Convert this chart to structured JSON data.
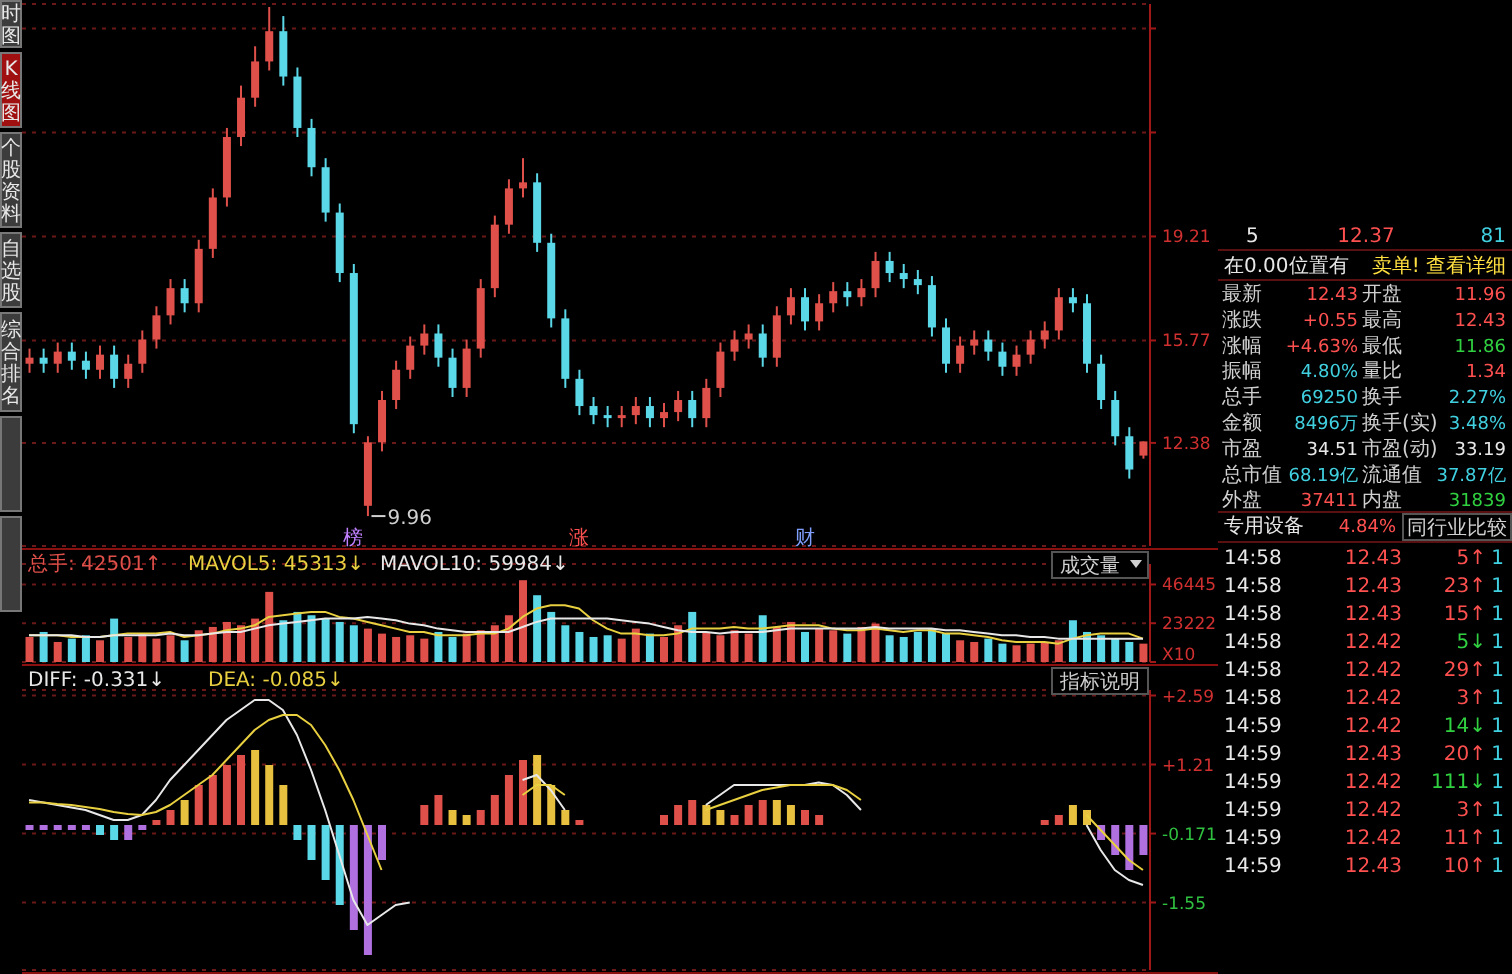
{
  "chart_data": [
    {
      "type": "candlestick",
      "tick_labels": "y",
      "grid": "y",
      "categories": [
        null,
        null,
        null,
        null,
        null,
        null,
        null,
        null,
        null,
        null,
        null,
        null,
        null,
        null,
        null,
        null,
        null,
        null,
        null,
        null,
        null,
        null,
        null,
        null,
        null,
        null,
        null,
        null,
        null,
        null,
        null,
        null,
        null,
        null,
        null,
        null,
        null,
        null,
        null,
        null,
        null,
        null,
        null,
        null,
        null,
        null,
        null,
        null,
        null,
        null,
        null,
        null,
        null,
        null,
        null,
        null,
        null,
        null,
        null,
        null,
        null,
        null,
        null,
        null,
        null,
        null,
        null,
        null,
        null,
        null,
        null,
        null,
        null,
        null,
        null,
        null,
        null,
        null,
        null,
        null
      ],
      "ohlc": [
        [
          15.0,
          15.5,
          14.7,
          15.2
        ],
        [
          15.2,
          15.5,
          14.7,
          15.0
        ],
        [
          15.0,
          15.7,
          14.7,
          15.4
        ],
        [
          15.4,
          15.7,
          14.8,
          15.1
        ],
        [
          15.1,
          15.4,
          14.5,
          14.8
        ],
        [
          14.8,
          15.6,
          14.5,
          15.3
        ],
        [
          15.3,
          15.6,
          14.2,
          14.5
        ],
        [
          14.5,
          15.3,
          14.2,
          15.0
        ],
        [
          15.0,
          16.1,
          14.7,
          15.8
        ],
        [
          15.8,
          16.9,
          15.5,
          16.6
        ],
        [
          16.6,
          17.8,
          16.3,
          17.5
        ],
        [
          17.5,
          17.8,
          16.7,
          17.0
        ],
        [
          17.0,
          19.1,
          16.7,
          18.8
        ],
        [
          18.8,
          20.8,
          18.5,
          20.5
        ],
        [
          20.5,
          22.8,
          20.2,
          22.5
        ],
        [
          22.5,
          24.2,
          22.2,
          23.8
        ],
        [
          23.8,
          25.5,
          23.5,
          25.0
        ],
        [
          25.0,
          26.8,
          24.7,
          26.0
        ],
        [
          26.0,
          26.5,
          24.2,
          24.5
        ],
        [
          24.5,
          24.8,
          22.5,
          22.8
        ],
        [
          22.8,
          23.1,
          21.2,
          21.5
        ],
        [
          21.5,
          21.8,
          19.7,
          20.0
        ],
        [
          20.0,
          20.3,
          17.7,
          18.0
        ],
        [
          18.0,
          18.3,
          12.7,
          13.0
        ],
        [
          10.3,
          12.6,
          9.96,
          12.4
        ],
        [
          12.4,
          14.1,
          12.1,
          13.8
        ],
        [
          13.8,
          15.1,
          13.5,
          14.8
        ],
        [
          14.8,
          15.9,
          14.5,
          15.6
        ],
        [
          15.6,
          16.3,
          15.3,
          16.0
        ],
        [
          16.0,
          16.3,
          14.9,
          15.2
        ],
        [
          15.2,
          15.5,
          13.9,
          14.2
        ],
        [
          14.2,
          15.8,
          13.9,
          15.5
        ],
        [
          15.5,
          17.8,
          15.2,
          17.5
        ],
        [
          17.5,
          19.9,
          17.2,
          19.6
        ],
        [
          19.6,
          21.1,
          19.3,
          20.8
        ],
        [
          20.8,
          21.8,
          20.5,
          21.0
        ],
        [
          21.0,
          21.3,
          18.7,
          19.0
        ],
        [
          19.0,
          19.3,
          16.2,
          16.5
        ],
        [
          16.5,
          16.8,
          14.2,
          14.5
        ],
        [
          14.5,
          14.8,
          13.3,
          13.6
        ],
        [
          13.6,
          13.9,
          13.0,
          13.3
        ],
        [
          13.3,
          13.6,
          12.9,
          13.2
        ],
        [
          13.2,
          13.6,
          12.9,
          13.3
        ],
        [
          13.3,
          13.9,
          13.0,
          13.6
        ],
        [
          13.6,
          13.9,
          12.9,
          13.2
        ],
        [
          13.2,
          13.7,
          12.9,
          13.4
        ],
        [
          13.4,
          14.1,
          13.1,
          13.8
        ],
        [
          13.8,
          14.1,
          12.9,
          13.2
        ],
        [
          13.2,
          14.5,
          12.9,
          14.2
        ],
        [
          14.2,
          15.7,
          13.9,
          15.4
        ],
        [
          15.4,
          16.1,
          15.1,
          15.8
        ],
        [
          15.8,
          16.3,
          15.5,
          16.0
        ],
        [
          16.0,
          16.3,
          14.9,
          15.2
        ],
        [
          15.2,
          16.9,
          14.9,
          16.6
        ],
        [
          16.6,
          17.5,
          16.3,
          17.2
        ],
        [
          17.2,
          17.5,
          16.1,
          16.4
        ],
        [
          16.4,
          17.3,
          16.1,
          17.0
        ],
        [
          17.0,
          17.7,
          16.7,
          17.4
        ],
        [
          17.4,
          17.7,
          16.9,
          17.2
        ],
        [
          17.2,
          17.8,
          16.9,
          17.5
        ],
        [
          17.5,
          18.7,
          17.2,
          18.4
        ],
        [
          18.4,
          18.7,
          17.7,
          18.0
        ],
        [
          18.0,
          18.3,
          17.5,
          17.8
        ],
        [
          17.8,
          18.1,
          17.3,
          17.6
        ],
        [
          17.6,
          17.9,
          15.9,
          16.2
        ],
        [
          16.2,
          16.5,
          14.7,
          15.0
        ],
        [
          15.0,
          15.9,
          14.7,
          15.6
        ],
        [
          15.6,
          16.1,
          15.3,
          15.8
        ],
        [
          15.8,
          16.1,
          15.1,
          15.4
        ],
        [
          15.4,
          15.7,
          14.6,
          14.9
        ],
        [
          14.9,
          15.6,
          14.6,
          15.3
        ],
        [
          15.3,
          16.1,
          15.0,
          15.8
        ],
        [
          15.8,
          16.4,
          15.5,
          16.1
        ],
        [
          16.1,
          17.5,
          15.8,
          17.2
        ],
        [
          17.2,
          17.5,
          16.7,
          17.0
        ],
        [
          17.0,
          17.3,
          14.7,
          15.0
        ],
        [
          15.0,
          15.3,
          13.5,
          13.8
        ],
        [
          13.8,
          14.1,
          12.3,
          12.6
        ],
        [
          12.6,
          12.9,
          11.2,
          11.5
        ],
        [
          11.96,
          12.43,
          11.86,
          12.43
        ]
      ],
      "colors": [
        "#e0504a",
        "#5ad8e8",
        "#e0504a",
        "#5ad8e8",
        "#5ad8e8",
        "#e0504a",
        "#5ad8e8",
        "#e0504a",
        "#e0504a",
        "#e0504a",
        "#e0504a",
        "#5ad8e8",
        "#e0504a",
        "#e0504a",
        "#e0504a",
        "#e0504a",
        "#e0504a",
        "#e0504a",
        "#5ad8e8",
        "#5ad8e8",
        "#5ad8e8",
        "#5ad8e8",
        "#5ad8e8",
        "#5ad8e8",
        "#e0504a",
        "#e0504a",
        "#e0504a",
        "#e0504a",
        "#e0504a",
        "#5ad8e8",
        "#5ad8e8",
        "#e0504a",
        "#e0504a",
        "#e0504a",
        "#e0504a",
        "#e0504a",
        "#5ad8e8",
        "#5ad8e8",
        "#5ad8e8",
        "#5ad8e8",
        "#5ad8e8",
        "#5ad8e8",
        "#e0504a",
        "#e0504a",
        "#5ad8e8",
        "#e0504a",
        "#e0504a",
        "#5ad8e8",
        "#e0504a",
        "#e0504a",
        "#e0504a",
        "#e0504a",
        "#5ad8e8",
        "#e0504a",
        "#e0504a",
        "#5ad8e8",
        "#e0504a",
        "#e0504a",
        "#5ad8e8",
        "#e0504a",
        "#e0504a",
        "#5ad8e8",
        "#5ad8e8",
        "#5ad8e8",
        "#5ad8e8",
        "#5ad8e8",
        "#e0504a",
        "#e0504a",
        "#5ad8e8",
        "#5ad8e8",
        "#e0504a",
        "#e0504a",
        "#e0504a",
        "#e0504a",
        "#5ad8e8",
        "#5ad8e8",
        "#5ad8e8",
        "#5ad8e8",
        "#5ad8e8",
        "#e0504a"
      ],
      "ylim": [
        8.97,
        26.9
      ],
      "yticks": [
        {
          "value": 12.38,
          "label": "12.38"
        },
        {
          "value": 15.77,
          "label": "15.77"
        },
        {
          "value": 19.21,
          "label": "19.21"
        },
        {
          "value": 22.65,
          "label": null
        },
        {
          "value": 26.09,
          "label": null
        }
      ],
      "annotations": [
        "9.96",
        "榜",
        "涨",
        "财"
      ]
    },
    {
      "type": "bar",
      "tick_labels": "y",
      "grid": "y",
      "legend": "top left",
      "categories": [
        null,
        null,
        null,
        null,
        null,
        null,
        null,
        null,
        null,
        null,
        null,
        null,
        null,
        null,
        null,
        null,
        null,
        null,
        null,
        null,
        null,
        null,
        null,
        null,
        null,
        null,
        null,
        null,
        null,
        null,
        null,
        null,
        null,
        null,
        null,
        null,
        null,
        null,
        null,
        null,
        null,
        null,
        null,
        null,
        null,
        null,
        null,
        null,
        null,
        null,
        null,
        null,
        null,
        null,
        null,
        null,
        null,
        null,
        null,
        null,
        null,
        null,
        null,
        null,
        null,
        null,
        null,
        null,
        null,
        null,
        null,
        null,
        null,
        null,
        null,
        null,
        null,
        null,
        null,
        null
      ],
      "ylim": [
        0,
        58700
      ],
      "yticks": [
        {
          "value": 0,
          "label": "X10"
        },
        23222,
        46445
      ],
      "series": [
        {
          "type": "bar",
          "name": "总手: 42501↑",
          "color": "#e0504a",
          "values": [
            15000,
            18000,
            12000,
            14000,
            16000,
            13000,
            26000,
            15000,
            17000,
            14000,
            16000,
            13000,
            19000,
            21000,
            24000,
            22000,
            26000,
            42000,
            25000,
            30000,
            28000,
            26000,
            24000,
            22000,
            20000,
            17000,
            15000,
            16000,
            14000,
            18000,
            15000,
            17000,
            19000,
            22000,
            28000,
            49000,
            40000,
            30000,
            22000,
            18000,
            15000,
            16000,
            14000,
            20000,
            17000,
            15000,
            22000,
            30000,
            18000,
            16000,
            19000,
            17000,
            28000,
            21000,
            24000,
            18000,
            20000,
            19000,
            17000,
            21000,
            23000,
            16000,
            15000,
            18000,
            20000,
            17000,
            13000,
            12000,
            14000,
            11000,
            10000,
            11000,
            12000,
            13000,
            25000,
            18000,
            16000,
            14000,
            12000,
            11000
          ],
          "colors": [
            "#e0504a",
            "#5ad8e8",
            "#e0504a",
            "#5ad8e8",
            "#5ad8e8",
            "#e0504a",
            "#5ad8e8",
            "#e0504a",
            "#e0504a",
            "#e0504a",
            "#e0504a",
            "#5ad8e8",
            "#e0504a",
            "#e0504a",
            "#e0504a",
            "#e0504a",
            "#e0504a",
            "#e0504a",
            "#5ad8e8",
            "#5ad8e8",
            "#5ad8e8",
            "#5ad8e8",
            "#5ad8e8",
            "#5ad8e8",
            "#e0504a",
            "#e0504a",
            "#e0504a",
            "#e0504a",
            "#e0504a",
            "#5ad8e8",
            "#5ad8e8",
            "#e0504a",
            "#e0504a",
            "#e0504a",
            "#e0504a",
            "#e0504a",
            "#5ad8e8",
            "#5ad8e8",
            "#5ad8e8",
            "#5ad8e8",
            "#5ad8e8",
            "#5ad8e8",
            "#e0504a",
            "#e0504a",
            "#5ad8e8",
            "#e0504a",
            "#e0504a",
            "#5ad8e8",
            "#e0504a",
            "#e0504a",
            "#e0504a",
            "#e0504a",
            "#5ad8e8",
            "#e0504a",
            "#e0504a",
            "#5ad8e8",
            "#e0504a",
            "#e0504a",
            "#5ad8e8",
            "#e0504a",
            "#e0504a",
            "#5ad8e8",
            "#5ad8e8",
            "#5ad8e8",
            "#5ad8e8",
            "#5ad8e8",
            "#e0504a",
            "#e0504a",
            "#5ad8e8",
            "#5ad8e8",
            "#e0504a",
            "#e0504a",
            "#e0504a",
            "#e0504a",
            "#5ad8e8",
            "#5ad8e8",
            "#5ad8e8",
            "#5ad8e8",
            "#5ad8e8",
            "#e0504a"
          ]
        },
        {
          "type": "line",
          "name": "MAVOL5: 45313↓",
          "color": "#e8d040",
          "values": [
            16000,
            16000,
            16000,
            15000,
            15000,
            15000,
            16000,
            17000,
            17000,
            17000,
            18000,
            15000,
            16000,
            17000,
            19000,
            20000,
            22000,
            27000,
            28000,
            29000,
            30000,
            30000,
            27000,
            26000,
            24000,
            22000,
            20000,
            18000,
            18000,
            16000,
            16000,
            16000,
            17000,
            17000,
            20000,
            27000,
            32000,
            34000,
            34000,
            32000,
            25000,
            20000,
            17000,
            17000,
            16000,
            16000,
            17000,
            20000,
            20000,
            20000,
            21000,
            20000,
            20000,
            21000,
            22000,
            22000,
            22000,
            20000,
            19000,
            19000,
            20000,
            19000,
            18000,
            19000,
            19000,
            17000,
            17000,
            16000,
            15000,
            13000,
            12000,
            12000,
            12000,
            11000,
            14000,
            16000,
            17000,
            17000,
            17000,
            14000
          ]
        },
        {
          "type": "line",
          "name": "MAVOL10: 59984↓",
          "color": "#e8e8e8",
          "values": [
            16000,
            16000,
            16000,
            16000,
            15000,
            15000,
            16000,
            16000,
            16000,
            16000,
            17000,
            16000,
            16000,
            17000,
            18000,
            18000,
            20000,
            22000,
            23000,
            24000,
            25000,
            26000,
            26000,
            26000,
            27000,
            26000,
            25000,
            23000,
            22000,
            20000,
            19000,
            18000,
            18000,
            18000,
            18000,
            21000,
            24000,
            26000,
            26000,
            26000,
            26000,
            26000,
            25000,
            24000,
            23000,
            21000,
            19000,
            18000,
            18000,
            17000,
            18000,
            18000,
            18000,
            19000,
            20000,
            20000,
            20000,
            20000,
            20000,
            20000,
            21000,
            20000,
            20000,
            20000,
            20000,
            19000,
            19000,
            18000,
            17000,
            16000,
            16000,
            15000,
            15000,
            14000,
            14000,
            14000,
            14000,
            14000,
            14000,
            14000
          ]
        }
      ],
      "annotations": [
        "成交量"
      ]
    },
    {
      "type": "bar",
      "tick_labels": "y",
      "grid": "y",
      "legend": "top left",
      "categories": [
        null,
        null,
        null,
        null,
        null,
        null,
        null,
        null,
        null,
        null,
        null,
        null,
        null,
        null,
        null,
        null,
        null,
        null,
        null,
        null,
        null,
        null,
        null,
        null,
        null,
        null,
        null,
        null,
        null,
        null,
        null,
        null,
        null,
        null,
        null,
        null,
        null,
        null,
        null,
        null,
        null,
        null,
        null,
        null,
        null,
        null,
        null,
        null,
        null,
        null,
        null,
        null,
        null,
        null,
        null,
        null,
        null,
        null,
        null,
        null,
        null,
        null,
        null,
        null,
        null,
        null,
        null,
        null,
        null,
        null,
        null,
        null,
        null,
        null,
        null,
        null,
        null,
        null,
        null,
        null
      ],
      "ylim": [
        -2.9,
        2.7
      ],
      "yticks": [
        {
          "value": -1.55,
          "label": "-1.55"
        },
        {
          "value": -0.171,
          "label": "-0.171"
        },
        {
          "value": 1.21,
          "label": "+1.21"
        },
        {
          "value": 2.59,
          "label": "+2.59"
        }
      ],
      "series": [
        {
          "type": "bar",
          "color": "#e0504a",
          "values": [
            -0.1,
            -0.1,
            -0.1,
            -0.1,
            -0.1,
            -0.2,
            -0.3,
            -0.3,
            -0.1,
            0.1,
            0.3,
            0.5,
            0.8,
            1.0,
            1.2,
            1.4,
            1.5,
            1.2,
            0.8,
            -0.3,
            -0.7,
            -1.1,
            -1.6,
            -2.1,
            -2.6,
            -0.7,
            null,
            null,
            0.4,
            0.6,
            0.3,
            0.2,
            0.3,
            0.6,
            1.0,
            1.3,
            1.4,
            0.8,
            0.3,
            0.1,
            null,
            null,
            null,
            null,
            null,
            0.2,
            0.4,
            0.5,
            0.4,
            0.3,
            0.2,
            0.4,
            0.5,
            0.5,
            0.4,
            0.3,
            0.2,
            null,
            null,
            null,
            null,
            null,
            null,
            null,
            null,
            null,
            null,
            null,
            null,
            null,
            null,
            null,
            0.1,
            0.2,
            0.4,
            0.3,
            -0.3,
            -0.6,
            -0.9,
            -0.6
          ],
          "colors": [
            "#b070e0",
            "#b070e0",
            "#b070e0",
            "#b070e0",
            "#b070e0",
            "#5ad8e8",
            "#5ad8e8",
            "#b070e0",
            "#b070e0",
            "#e0504a",
            "#e0504a",
            "#e8c040",
            "#e0504a",
            "#e0504a",
            "#e0504a",
            "#e0504a",
            "#e8c040",
            "#e8c040",
            "#e8c040",
            "#5ad8e8",
            "#5ad8e8",
            "#5ad8e8",
            "#5ad8e8",
            "#b070e0",
            "#b070e0",
            "#b070e0",
            "#e0504a",
            "#e0504a",
            "#e0504a",
            "#e0504a",
            "#e8c040",
            "#e8c040",
            "#e0504a",
            "#e0504a",
            "#e0504a",
            "#e0504a",
            "#e8c040",
            "#e8c040",
            "#e8c040",
            "#e0504a",
            "#e0504a",
            "#e0504a",
            "#e0504a",
            "#e0504a",
            "#e0504a",
            "#e0504a",
            "#e0504a",
            "#e0504a",
            "#e8c040",
            "#e8c040",
            "#e0504a",
            "#e0504a",
            "#e0504a",
            "#e8c040",
            "#e8c040",
            "#e0504a",
            "#e0504a",
            "#e0504a",
            "#e0504a",
            "#e0504a",
            "#e0504a",
            "#e0504a",
            "#e0504a",
            "#e0504a",
            "#e0504a",
            "#e0504a",
            "#e0504a",
            "#e0504a",
            "#e0504a",
            "#e0504a",
            "#e0504a",
            "#e0504a",
            "#e0504a",
            "#e0504a",
            "#e8c040",
            "#e8c040",
            "#b070e0",
            "#b070e0",
            "#b070e0",
            "#b070e0"
          ]
        },
        {
          "type": "line",
          "name": "DIFF: -0.331↓",
          "color": "#e8e8e8",
          "values": [
            0.5,
            0.45,
            0.4,
            0.35,
            0.3,
            0.2,
            0.1,
            0.1,
            0.2,
            0.5,
            0.9,
            1.2,
            1.5,
            1.8,
            2.1,
            2.3,
            2.5,
            2.5,
            2.3,
            1.8,
            1.1,
            0.3,
            -0.6,
            -1.5,
            -2.0,
            -1.8,
            -1.6,
            -1.55,
            null,
            null,
            null,
            null,
            null,
            null,
            null,
            0.9,
            1.0,
            0.7,
            0.3,
            null,
            null,
            null,
            null,
            null,
            null,
            null,
            null,
            null,
            0.4,
            0.6,
            0.8,
            0.8,
            0.8,
            0.8,
            0.8,
            0.8,
            0.85,
            0.8,
            0.6,
            0.3,
            null,
            null,
            null,
            null,
            null,
            null,
            null,
            null,
            null,
            null,
            null,
            null,
            null,
            null,
            null,
            0.0,
            -0.5,
            -0.9,
            -1.1,
            -1.2
          ]
        },
        {
          "type": "line",
          "name": "DEA: -0.085↓",
          "color": "#e8d040",
          "values": [
            0.45,
            0.45,
            0.42,
            0.4,
            0.36,
            0.32,
            0.26,
            0.22,
            0.2,
            0.26,
            0.4,
            0.6,
            0.8,
            1.0,
            1.3,
            1.6,
            1.9,
            2.1,
            2.2,
            2.2,
            2.0,
            1.6,
            1.1,
            0.5,
            -0.2,
            -0.9,
            null,
            null,
            null,
            null,
            null,
            null,
            null,
            null,
            null,
            0.6,
            0.8,
            0.8,
            0.6,
            null,
            null,
            null,
            null,
            null,
            null,
            null,
            null,
            null,
            0.3,
            0.4,
            0.5,
            0.6,
            0.7,
            0.75,
            0.8,
            0.8,
            0.8,
            0.8,
            0.7,
            0.5,
            null,
            null,
            null,
            null,
            null,
            null,
            null,
            null,
            null,
            null,
            null,
            null,
            null,
            null,
            null,
            0.2,
            -0.1,
            -0.4,
            -0.7,
            -0.9
          ]
        }
      ],
      "annotations": [
        "指标说明"
      ]
    },
    {
      "type": "other",
      "annotations": [
        "5",
        "12.37",
        "81",
        "在0.00位置有",
        "卖单! 查看详细",
        "最新",
        "12.43",
        "开盘",
        "11.96",
        "涨跌",
        "+0.55",
        "最高",
        "12.43",
        "涨幅",
        "+4.63%",
        "最低",
        "11.86",
        "振幅",
        "4.80%",
        "量比",
        "1.34",
        "总手",
        "69250",
        "换手",
        "2.27%",
        "金额",
        "8496万",
        "换手(实)",
        "3.48%",
        "市盈",
        "34.51",
        "市盈(动)",
        "33.19",
        "总市值",
        "68.19亿",
        "流通值",
        "37.87亿",
        "外盘",
        "37411",
        "内盘",
        "31839",
        "专用设备",
        "4.84%",
        "同行业比较",
        "14:58",
        "12.43",
        "5↑",
        "1",
        "14:58",
        "12.43",
        "23↑",
        "1",
        "14:58",
        "12.43",
        "15↑",
        "1",
        "14:58",
        "12.42",
        "5↓",
        "1",
        "14:58",
        "12.42",
        "29↑",
        "1",
        "14:58",
        "12.42",
        "3↑",
        "1",
        "14:59",
        "12.42",
        "14↓",
        "1",
        "14:59",
        "12.43",
        "20↑",
        "1",
        "14:59",
        "12.42",
        "111↓",
        "1",
        "14:59",
        "12.42",
        "3↑",
        "1",
        "14:59",
        "12.42",
        "11↑",
        "1",
        "14:59",
        "12.43",
        "10↑",
        "1"
      ]
    },
    {
      "type": "other",
      "annotations": [
        "时图",
        "K线图",
        "个股资料",
        "自选股",
        "综合排名"
      ]
    }
  ]
}
